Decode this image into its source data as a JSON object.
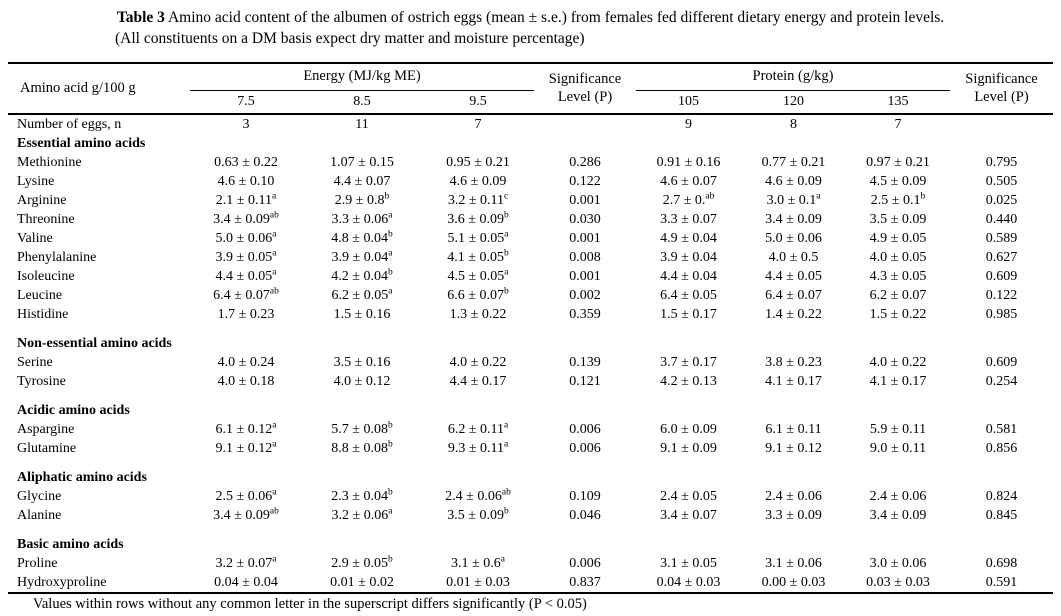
{
  "title": {
    "label": "Table 3",
    "text": " Amino acid content of the albumen of ostrich eggs (mean ± s.e.) from females fed different dietary energy and protein levels.",
    "subtitle": "(All constituents on a DM basis expect dry matter and moisture percentage)"
  },
  "table": {
    "row_header": "Amino acid g/100 g",
    "energy": {
      "label": "Energy (MJ/kg ME)",
      "sub": [
        "7.5",
        "8.5",
        "9.5"
      ]
    },
    "protein": {
      "label": "Protein (g/kg)",
      "sub": [
        "105",
        "120",
        "135"
      ]
    },
    "sig_header": "Significance\nLevel (P)",
    "rows": [
      {
        "type": "data",
        "label": "Number of eggs, n",
        "cells": [
          "3",
          "11",
          "7",
          "",
          "9",
          "8",
          "7",
          ""
        ]
      },
      {
        "type": "section",
        "label": "Essential amino acids"
      },
      {
        "type": "data",
        "label": "Methionine",
        "cells": [
          "0.63 ± 0.22",
          "1.07 ± 0.15",
          "0.95 ± 0.21",
          "0.286",
          "0.91 ± 0.16",
          "0.77 ± 0.21",
          "0.97 ± 0.21",
          "0.795"
        ]
      },
      {
        "type": "data",
        "label": "Lysine",
        "cells": [
          "4.6 ± 0.10",
          "4.4 ± 0.07",
          "4.6 ± 0.09",
          "0.122",
          "4.6 ± 0.07",
          "4.6 ± 0.09",
          "4.5 ± 0.09",
          "0.505"
        ]
      },
      {
        "type": "data",
        "label": "Arginine",
        "cells": [
          "2.1 ± 0.11^a",
          "2.9 ± 0.8^b",
          "3.2 ± 0.11^c",
          "0.001",
          "2.7 ± 0.^ab",
          "3.0 ± 0.1^a",
          "2.5 ± 0.1^b",
          "0.025"
        ]
      },
      {
        "type": "data",
        "label": "Threonine",
        "cells": [
          "3.4 ± 0.09^ab",
          "3.3 ± 0.06^a",
          "3.6 ± 0.09^b",
          "0.030",
          "3.3 ± 0.07",
          "3.4 ± 0.09",
          "3.5 ± 0.09",
          "0.440"
        ]
      },
      {
        "type": "data",
        "label": "Valine",
        "cells": [
          "5.0 ± 0.06^a",
          "4.8 ± 0.04^b",
          "5.1 ± 0.05^a",
          "0.001",
          "4.9 ± 0.04",
          "5.0 ± 0.06",
          "4.9 ± 0.05",
          "0.589"
        ]
      },
      {
        "type": "data",
        "label": "Phenylalanine",
        "cells": [
          "3.9 ± 0.05^a",
          "3.9 ± 0.04^a",
          "4.1 ± 0.05^b",
          "0.008",
          "3.9 ± 0.04",
          "4.0 ± 0.5",
          "4.0 ± 0.05",
          "0.627"
        ]
      },
      {
        "type": "data",
        "label": "Isoleucine",
        "cells": [
          "4.4 ± 0.05^a",
          "4.2 ± 0.04^b",
          "4.5 ± 0.05^a",
          "0.001",
          "4.4 ± 0.04",
          "4.4 ± 0.05",
          "4.3 ± 0.05",
          "0.609"
        ]
      },
      {
        "type": "data",
        "label": "Leucine",
        "cells": [
          "6.4 ± 0.07^ab",
          "6.2 ± 0.05^a",
          "6.6 ± 0.07^b",
          "0.002",
          "6.4 ± 0.05",
          "6.4 ± 0.07",
          "6.2 ± 0.07",
          "0.122"
        ]
      },
      {
        "type": "data",
        "label": "Histidine",
        "cells": [
          "1.7 ± 0.23",
          "1.5 ± 0.16",
          "1.3 ± 0.22",
          "0.359",
          "1.5 ± 0.17",
          "1.4 ± 0.22",
          "1.5 ± 0.22",
          "0.985"
        ]
      },
      {
        "type": "spacer"
      },
      {
        "type": "section",
        "label": "Non-essential amino acids"
      },
      {
        "type": "data",
        "label": "Serine",
        "cells": [
          "4.0 ± 0.24",
          "3.5 ± 0.16",
          "4.0 ± 0.22",
          "0.139",
          "3.7 ± 0.17",
          "3.8 ± 0.23",
          "4.0 ± 0.22",
          "0.609"
        ]
      },
      {
        "type": "data",
        "label": "Tyrosine",
        "cells": [
          "4.0 ± 0.18",
          "4.0 ± 0.12",
          "4.4 ± 0.17",
          "0.121",
          "4.2 ± 0.13",
          "4.1 ± 0.17",
          "4.1 ± 0.17",
          "0.254"
        ]
      },
      {
        "type": "spacer"
      },
      {
        "type": "section",
        "label": "Acidic amino acids"
      },
      {
        "type": "data",
        "label": "Aspargine",
        "cells": [
          "6.1 ± 0.12^a",
          "5.7 ± 0.08^b",
          "6.2 ± 0.11^a",
          "0.006",
          "6.0 ± 0.09",
          "6.1 ± 0.11",
          "5.9 ± 0.11",
          "0.581"
        ]
      },
      {
        "type": "data",
        "label": "Glutamine",
        "cells": [
          "9.1 ± 0.12^a",
          "8.8 ± 0.08^b",
          "9.3 ± 0.11^a",
          "0.006",
          "9.1 ± 0.09",
          "9.1 ± 0.12",
          "9.0 ± 0.11",
          "0.856"
        ]
      },
      {
        "type": "spacer"
      },
      {
        "type": "section",
        "label": "Aliphatic amino acids"
      },
      {
        "type": "data",
        "label": "Glycine",
        "cells": [
          "2.5 ± 0.06^a",
          "2.3 ± 0.04^b",
          "2.4 ± 0.06^ab",
          "0.109",
          "2.4 ± 0.05",
          "2.4 ± 0.06",
          "2.4 ± 0.06",
          "0.824"
        ]
      },
      {
        "type": "data",
        "label": "Alanine",
        "cells": [
          "3.4 ± 0.09^ab",
          "3.2 ± 0.06^a",
          "3.5 ± 0.09^b",
          "0.046",
          "3.4 ± 0.07",
          "3.3 ± 0.09",
          "3.4 ± 0.09",
          "0.845"
        ]
      },
      {
        "type": "spacer"
      },
      {
        "type": "section",
        "label": "Basic amino acids"
      },
      {
        "type": "data",
        "label": "Proline",
        "cells": [
          "3.2 ± 0.07^a",
          "2.9 ± 0.05^b",
          "3.1 ± 0.6^a",
          "0.006",
          "3.1 ± 0.05",
          "3.1 ± 0.06",
          "3.0 ± 0.06",
          "0.698"
        ]
      },
      {
        "type": "data",
        "label": "Hydroxyproline",
        "cells": [
          "0.04 ± 0.04",
          "0.01 ± 0.02",
          "0.01 ± 0.03",
          "0.837",
          "0.04 ± 0.03",
          "0.00 ± 0.03",
          "0.03 ± 0.03",
          "0.591"
        ]
      }
    ]
  },
  "footnote": "Values within rows without any common letter in the superscript differs significantly (P < 0.05)",
  "colors": {
    "text": "#000000",
    "background": "#ffffff"
  }
}
